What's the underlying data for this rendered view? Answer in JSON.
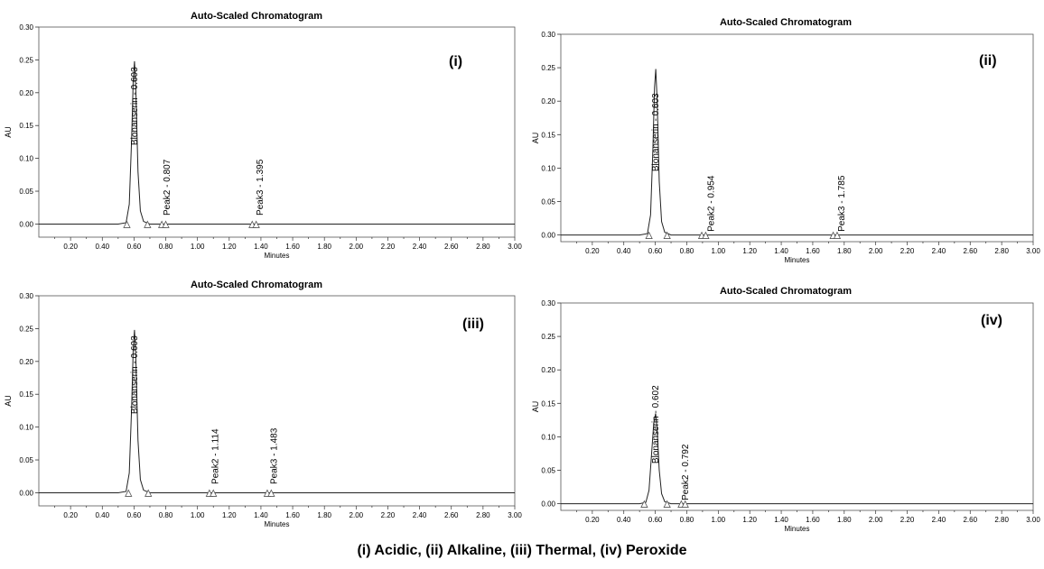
{
  "caption": "(i) Acidic, (ii) Alkaline, (iii) Thermal, (iv) Peroxide",
  "chart_data": [
    {
      "type": "line",
      "panel_label": "(i)",
      "title": "Auto-Scaled Chromatogram",
      "xlabel": "Minutes",
      "ylabel": "AU",
      "xlim": [
        0,
        3.0
      ],
      "ylim": [
        -0.02,
        0.3
      ],
      "xticks": [
        "0.20",
        "0.40",
        "0.60",
        "0.80",
        "1.00",
        "1.20",
        "1.40",
        "1.60",
        "1.80",
        "2.00",
        "2.20",
        "2.40",
        "2.60",
        "2.80",
        "3.00"
      ],
      "yticks": [
        "0.00",
        "0.05",
        "0.10",
        "0.15",
        "0.20",
        "0.25",
        "0.30"
      ],
      "series": [
        {
          "points": [
            [
              0,
              0
            ],
            [
              0.5,
              0
            ],
            [
              0.55,
              0.002
            ],
            [
              0.57,
              0.03
            ],
            [
              0.585,
              0.13
            ],
            [
              0.595,
              0.22
            ],
            [
              0.603,
              0.248
            ],
            [
              0.612,
              0.2
            ],
            [
              0.625,
              0.08
            ],
            [
              0.64,
              0.02
            ],
            [
              0.66,
              0.004
            ],
            [
              0.7,
              0
            ],
            [
              3.0,
              0
            ]
          ]
        }
      ],
      "peaks": [
        {
          "label": "Blonanserin - 0.603",
          "rt": 0.603,
          "label_y": 0.12
        },
        {
          "label": "Peak2 - 0.807",
          "rt": 0.807,
          "label_y": 0.013
        },
        {
          "label": "Peak3 - 1.395",
          "rt": 1.395,
          "label_y": 0.013
        }
      ],
      "markers": [
        0.555,
        0.685,
        0.775,
        0.8,
        1.345,
        1.37
      ]
    },
    {
      "type": "line",
      "panel_label": "(ii)",
      "title": "Auto-Scaled Chromatogram",
      "xlabel": "Minutes",
      "ylabel": "AU",
      "xlim": [
        0,
        3.0
      ],
      "ylim": [
        -0.01,
        0.3
      ],
      "xticks": [
        "0.20",
        "0.40",
        "0.60",
        "0.80",
        "1.00",
        "1.20",
        "1.40",
        "1.60",
        "1.80",
        "2.00",
        "2.20",
        "2.40",
        "2.60",
        "2.80",
        "3.00"
      ],
      "yticks": [
        "0.00",
        "0.05",
        "0.10",
        "0.15",
        "0.20",
        "0.25",
        "0.30"
      ],
      "series": [
        {
          "points": [
            [
              0,
              0
            ],
            [
              0.5,
              0
            ],
            [
              0.55,
              0.002
            ],
            [
              0.57,
              0.03
            ],
            [
              0.585,
              0.13
            ],
            [
              0.595,
              0.22
            ],
            [
              0.603,
              0.248
            ],
            [
              0.612,
              0.2
            ],
            [
              0.625,
              0.08
            ],
            [
              0.64,
              0.02
            ],
            [
              0.66,
              0.004
            ],
            [
              0.7,
              0
            ],
            [
              3.0,
              0
            ]
          ]
        }
      ],
      "peaks": [
        {
          "label": "Blonanserin - 0.603",
          "rt": 0.603,
          "label_y": 0.095
        },
        {
          "label": "Peak2 - 0.954",
          "rt": 0.954,
          "label_y": 0.005
        },
        {
          "label": "Peak3 - 1.785",
          "rt": 1.785,
          "label_y": 0.005
        }
      ],
      "markers": [
        0.56,
        0.675,
        0.895,
        0.92,
        1.73,
        1.755
      ]
    },
    {
      "type": "line",
      "panel_label": "(iii)",
      "title": "Auto-Scaled Chromatogram",
      "xlabel": "Minutes",
      "ylabel": "AU",
      "xlim": [
        0,
        3.0
      ],
      "ylim": [
        -0.02,
        0.3
      ],
      "xticks": [
        "0.20",
        "0.40",
        "0.60",
        "0.80",
        "1.00",
        "1.20",
        "1.40",
        "1.60",
        "1.80",
        "2.00",
        "2.20",
        "2.40",
        "2.60",
        "2.80",
        "3.00"
      ],
      "yticks": [
        "0.00",
        "0.05",
        "0.10",
        "0.15",
        "0.20",
        "0.25",
        "0.30"
      ],
      "series": [
        {
          "points": [
            [
              0,
              0
            ],
            [
              0.5,
              0
            ],
            [
              0.55,
              0.002
            ],
            [
              0.57,
              0.03
            ],
            [
              0.585,
              0.13
            ],
            [
              0.595,
              0.22
            ],
            [
              0.603,
              0.248
            ],
            [
              0.612,
              0.2
            ],
            [
              0.625,
              0.08
            ],
            [
              0.64,
              0.02
            ],
            [
              0.66,
              0.004
            ],
            [
              0.7,
              0
            ],
            [
              3.0,
              0
            ]
          ]
        }
      ],
      "peaks": [
        {
          "label": "Blonanserin - 0.603",
          "rt": 0.603,
          "label_y": 0.12
        },
        {
          "label": "Peak2 - 1.114",
          "rt": 1.114,
          "label_y": 0.013
        },
        {
          "label": "Peak3 - 1.483",
          "rt": 1.483,
          "label_y": 0.013
        }
      ],
      "markers": [
        0.565,
        0.69,
        1.075,
        1.1,
        1.44,
        1.465
      ]
    },
    {
      "type": "line",
      "panel_label": "(iv)",
      "title": "Auto-Scaled Chromatogram",
      "xlabel": "Minutes",
      "ylabel": "AU",
      "xlim": [
        0,
        3.0
      ],
      "ylim": [
        -0.01,
        0.3
      ],
      "xticks": [
        "0.20",
        "0.40",
        "0.60",
        "0.80",
        "1.00",
        "1.20",
        "1.40",
        "1.60",
        "1.80",
        "2.00",
        "2.20",
        "2.40",
        "2.60",
        "2.80",
        "3.00"
      ],
      "yticks": [
        "0.00",
        "0.05",
        "0.10",
        "0.15",
        "0.20",
        "0.25",
        "0.30"
      ],
      "series": [
        {
          "points": [
            [
              0,
              0
            ],
            [
              0.5,
              0
            ],
            [
              0.54,
              0.002
            ],
            [
              0.56,
              0.02
            ],
            [
              0.575,
              0.07
            ],
            [
              0.59,
              0.12
            ],
            [
              0.602,
              0.135
            ],
            [
              0.612,
              0.11
            ],
            [
              0.625,
              0.05
            ],
            [
              0.64,
              0.015
            ],
            [
              0.66,
              0.003
            ],
            [
              0.7,
              0
            ],
            [
              3.0,
              0
            ]
          ]
        }
      ],
      "peaks": [
        {
          "label": "Blonanserin - 0.602",
          "rt": 0.602,
          "label_y": 0.06
        },
        {
          "label": "Peak2 - 0.792",
          "rt": 0.792,
          "label_y": 0.005
        }
      ],
      "markers": [
        0.53,
        0.675,
        0.765,
        0.79
      ]
    }
  ]
}
